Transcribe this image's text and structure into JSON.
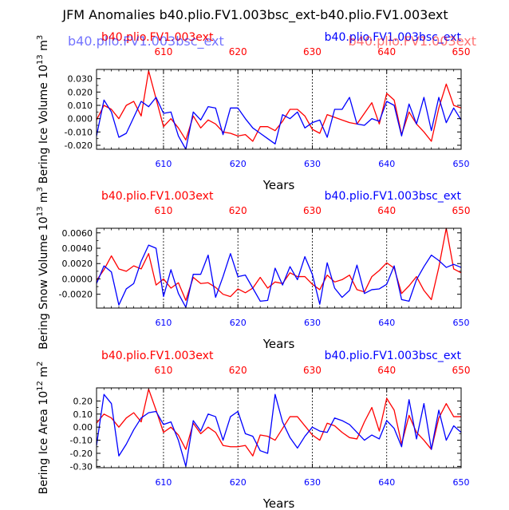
{
  "title": "JFM Anomalies b40.plio.FV1.003bsc_ext-b40.plio.FV1.003ext",
  "colors": {
    "series_a": "#ff0000",
    "series_b": "#0000ff",
    "axis": "#000000",
    "grid": "#000000"
  },
  "chart_data": [
    {
      "type": "line",
      "ylabel": "Bering Ice Volume 10",
      "ylabel_exp": "13",
      "ylabel_unit": "m",
      "ylabel_unit_exp": "3",
      "xlabel": "Years",
      "xlim": [
        601,
        650
      ],
      "ylim": [
        -0.023,
        0.037
      ],
      "yticks": [
        0.03,
        0.02,
        0.01,
        0.0,
        -0.01,
        -0.02
      ],
      "ytick_labels": [
        "0.030",
        "0.020",
        "0.010",
        "0.000",
        "-0.010",
        "-0.020"
      ],
      "xticks": [
        610,
        620,
        630,
        640,
        650
      ],
      "xtick_labels": [
        "610",
        "620",
        "630",
        "640",
        "650"
      ],
      "series_left_label": "b40.plio.FV1.003ext",
      "series_right_label": "b40.plio.FV1.003bsc_ext",
      "ghost_labels": [
        "b40.plio.FV1.003bsc_ext",
        "b40.plio.FV1.003ext"
      ],
      "x": [
        601,
        602,
        603,
        604,
        605,
        606,
        607,
        608,
        609,
        610,
        611,
        612,
        613,
        614,
        615,
        616,
        617,
        618,
        619,
        620,
        621,
        622,
        623,
        624,
        625,
        626,
        627,
        628,
        629,
        630,
        631,
        632,
        633,
        634,
        635,
        636,
        637,
        638,
        639,
        640,
        641,
        642,
        643,
        644,
        645,
        646,
        647,
        648,
        649,
        650
      ],
      "series": [
        {
          "name": "b40.plio.FV1.003ext",
          "color": "#ff0000",
          "values": [
            -0.001,
            0.01,
            0.007,
            0.0,
            0.01,
            0.013,
            0.002,
            0.036,
            0.015,
            -0.006,
            0.0,
            -0.007,
            -0.016,
            0.002,
            -0.007,
            -0.001,
            -0.004,
            -0.01,
            -0.011,
            -0.013,
            -0.012,
            -0.017,
            -0.006,
            -0.006,
            -0.009,
            -0.002,
            0.007,
            0.007,
            0.002,
            -0.008,
            -0.011,
            0.003,
            0.001,
            -0.001,
            -0.003,
            -0.004,
            0.004,
            0.012,
            -0.004,
            0.019,
            0.014,
            -0.012,
            0.005,
            -0.004,
            -0.01,
            -0.017,
            0.008,
            0.026,
            0.01,
            0.008
          ]
        },
        {
          "name": "b40.plio.FV1.003bsc_ext",
          "color": "#0000ff",
          "values": [
            -0.013,
            0.014,
            0.005,
            -0.014,
            -0.011,
            0.001,
            0.013,
            0.009,
            0.016,
            0.004,
            0.005,
            -0.013,
            -0.023,
            0.005,
            -0.001,
            0.009,
            0.008,
            -0.012,
            0.008,
            0.008,
            0.0,
            -0.007,
            -0.011,
            -0.015,
            -0.019,
            0.003,
            0.0,
            0.005,
            -0.007,
            -0.003,
            -0.001,
            -0.014,
            0.007,
            0.007,
            0.016,
            -0.004,
            -0.005,
            0.0,
            -0.002,
            0.013,
            0.01,
            -0.013,
            0.011,
            -0.004,
            0.016,
            -0.009,
            0.016,
            -0.003,
            0.008,
            -0.001
          ]
        }
      ]
    },
    {
      "type": "line",
      "ylabel": "Bering Snow Volume 10",
      "ylabel_exp": "13",
      "ylabel_unit": "m",
      "ylabel_unit_exp": "3",
      "xlabel": "Years",
      "xlim": [
        601,
        650
      ],
      "ylim": [
        -0.0038,
        0.0066
      ],
      "yticks": [
        0.006,
        0.004,
        0.002,
        0.0,
        -0.002
      ],
      "ytick_labels": [
        "0.0060",
        "0.0040",
        "0.0020",
        "0.0000",
        "-0.0020"
      ],
      "xticks": [
        610,
        620,
        630,
        640,
        650
      ],
      "xtick_labels": [
        "610",
        "620",
        "630",
        "640",
        "650"
      ],
      "series_left_label": "b40.plio.FV1.003ext",
      "series_right_label": "b40.plio.FV1.003bsc_ext",
      "ghost_labels": [],
      "x": [
        601,
        602,
        603,
        604,
        605,
        606,
        607,
        608,
        609,
        610,
        611,
        612,
        613,
        614,
        615,
        616,
        617,
        618,
        619,
        620,
        621,
        622,
        623,
        624,
        625,
        626,
        627,
        628,
        629,
        630,
        631,
        632,
        633,
        634,
        635,
        636,
        637,
        638,
        639,
        640,
        641,
        642,
        643,
        644,
        645,
        646,
        647,
        648,
        649,
        650
      ],
      "series": [
        {
          "name": "b40.plio.FV1.003ext",
          "color": "#ff0000",
          "values": [
            -0.0002,
            0.0012,
            0.003,
            0.0013,
            0.001,
            0.0017,
            0.0013,
            0.0033,
            -0.0008,
            0.0,
            -0.0012,
            -0.0005,
            -0.0028,
            0.0002,
            -0.0006,
            -0.0005,
            -0.0011,
            -0.002,
            -0.0023,
            -0.0013,
            -0.0018,
            -0.0012,
            0.0002,
            -0.0012,
            -0.0004,
            -0.0006,
            0.0008,
            0.0003,
            0.0003,
            -0.0007,
            -0.0014,
            0.0005,
            -0.0004,
            -0.0001,
            0.0005,
            -0.0014,
            -0.0017,
            0.0003,
            0.0011,
            0.0021,
            0.0014,
            -0.0019,
            -0.0009,
            0.0003,
            -0.0015,
            -0.0027,
            0.0015,
            0.0066,
            0.0013,
            0.0008
          ]
        },
        {
          "name": "b40.plio.FV1.003bsc_ext",
          "color": "#0000ff",
          "values": [
            -0.0006,
            0.0017,
            0.0009,
            -0.0034,
            -0.0013,
            -0.0006,
            0.0023,
            0.0044,
            0.004,
            -0.0023,
            0.0012,
            -0.0019,
            -0.0037,
            0.0006,
            0.0006,
            0.0031,
            -0.0024,
            0.0003,
            0.0033,
            0.0003,
            0.0005,
            -0.0012,
            -0.0029,
            -0.0028,
            0.0014,
            -0.0008,
            0.0016,
            -0.0001,
            0.0029,
            0.0006,
            -0.0033,
            0.0021,
            -0.0012,
            -0.0024,
            -0.0015,
            0.0018,
            -0.0019,
            -0.0014,
            -0.0013,
            -0.0007,
            0.0017,
            -0.0027,
            -0.0029,
            -0.0001,
            0.0016,
            0.0031,
            0.0024,
            0.0015,
            0.0019,
            0.0015
          ]
        }
      ]
    },
    {
      "type": "line",
      "ylabel": "Bering Ice Area 10",
      "ylabel_exp": "12",
      "ylabel_unit": "m",
      "ylabel_unit_exp": "2",
      "xlabel": "Years",
      "xlim": [
        601,
        650
      ],
      "ylim": [
        -0.31,
        0.3
      ],
      "yticks": [
        0.2,
        0.1,
        0.0,
        -0.1,
        -0.2,
        -0.3
      ],
      "ytick_labels": [
        "0.20",
        "0.10",
        "0.00",
        "-0.10",
        "-0.20",
        "-0.30"
      ],
      "xticks": [
        610,
        620,
        630,
        640,
        650
      ],
      "xtick_labels": [
        "610",
        "620",
        "630",
        "640",
        "650"
      ],
      "series_left_label": "b40.plio.FV1.003ext",
      "series_right_label": "b40.plio.FV1.003bsc_ext",
      "ghost_labels": [],
      "x": [
        601,
        602,
        603,
        604,
        605,
        606,
        607,
        608,
        609,
        610,
        611,
        612,
        613,
        614,
        615,
        616,
        617,
        618,
        619,
        620,
        621,
        622,
        623,
        624,
        625,
        626,
        627,
        628,
        629,
        630,
        631,
        632,
        633,
        634,
        635,
        636,
        637,
        638,
        639,
        640,
        641,
        642,
        643,
        644,
        645,
        646,
        647,
        648,
        649,
        650
      ],
      "series": [
        {
          "name": "b40.plio.FV1.003ext",
          "color": "#ff0000",
          "values": [
            0.03,
            0.1,
            0.07,
            0.0,
            0.07,
            0.11,
            0.04,
            0.29,
            0.13,
            -0.04,
            0.0,
            -0.06,
            -0.17,
            0.03,
            -0.05,
            0.0,
            -0.04,
            -0.14,
            -0.15,
            -0.15,
            -0.14,
            -0.22,
            -0.06,
            -0.07,
            -0.1,
            -0.01,
            0.08,
            0.08,
            0.01,
            -0.06,
            -0.1,
            0.03,
            0.01,
            -0.04,
            -0.08,
            -0.09,
            0.04,
            0.15,
            -0.03,
            0.22,
            0.13,
            -0.13,
            0.09,
            -0.04,
            -0.1,
            -0.17,
            0.07,
            0.18,
            0.08,
            0.08
          ]
        },
        {
          "name": "b40.plio.FV1.003bsc_ext",
          "color": "#0000ff",
          "values": [
            -0.14,
            0.25,
            0.18,
            -0.22,
            -0.13,
            -0.02,
            0.07,
            0.11,
            0.12,
            0.02,
            0.04,
            -0.1,
            -0.3,
            0.05,
            -0.03,
            0.1,
            0.08,
            -0.1,
            0.08,
            0.12,
            -0.05,
            -0.07,
            -0.18,
            -0.2,
            0.25,
            0.04,
            -0.08,
            -0.16,
            -0.07,
            0.0,
            -0.03,
            -0.04,
            0.07,
            0.05,
            0.02,
            -0.04,
            -0.1,
            -0.06,
            -0.09,
            0.05,
            -0.01,
            -0.15,
            0.21,
            -0.09,
            0.18,
            -0.17,
            0.13,
            -0.1,
            0.01,
            -0.04
          ]
        }
      ]
    }
  ]
}
